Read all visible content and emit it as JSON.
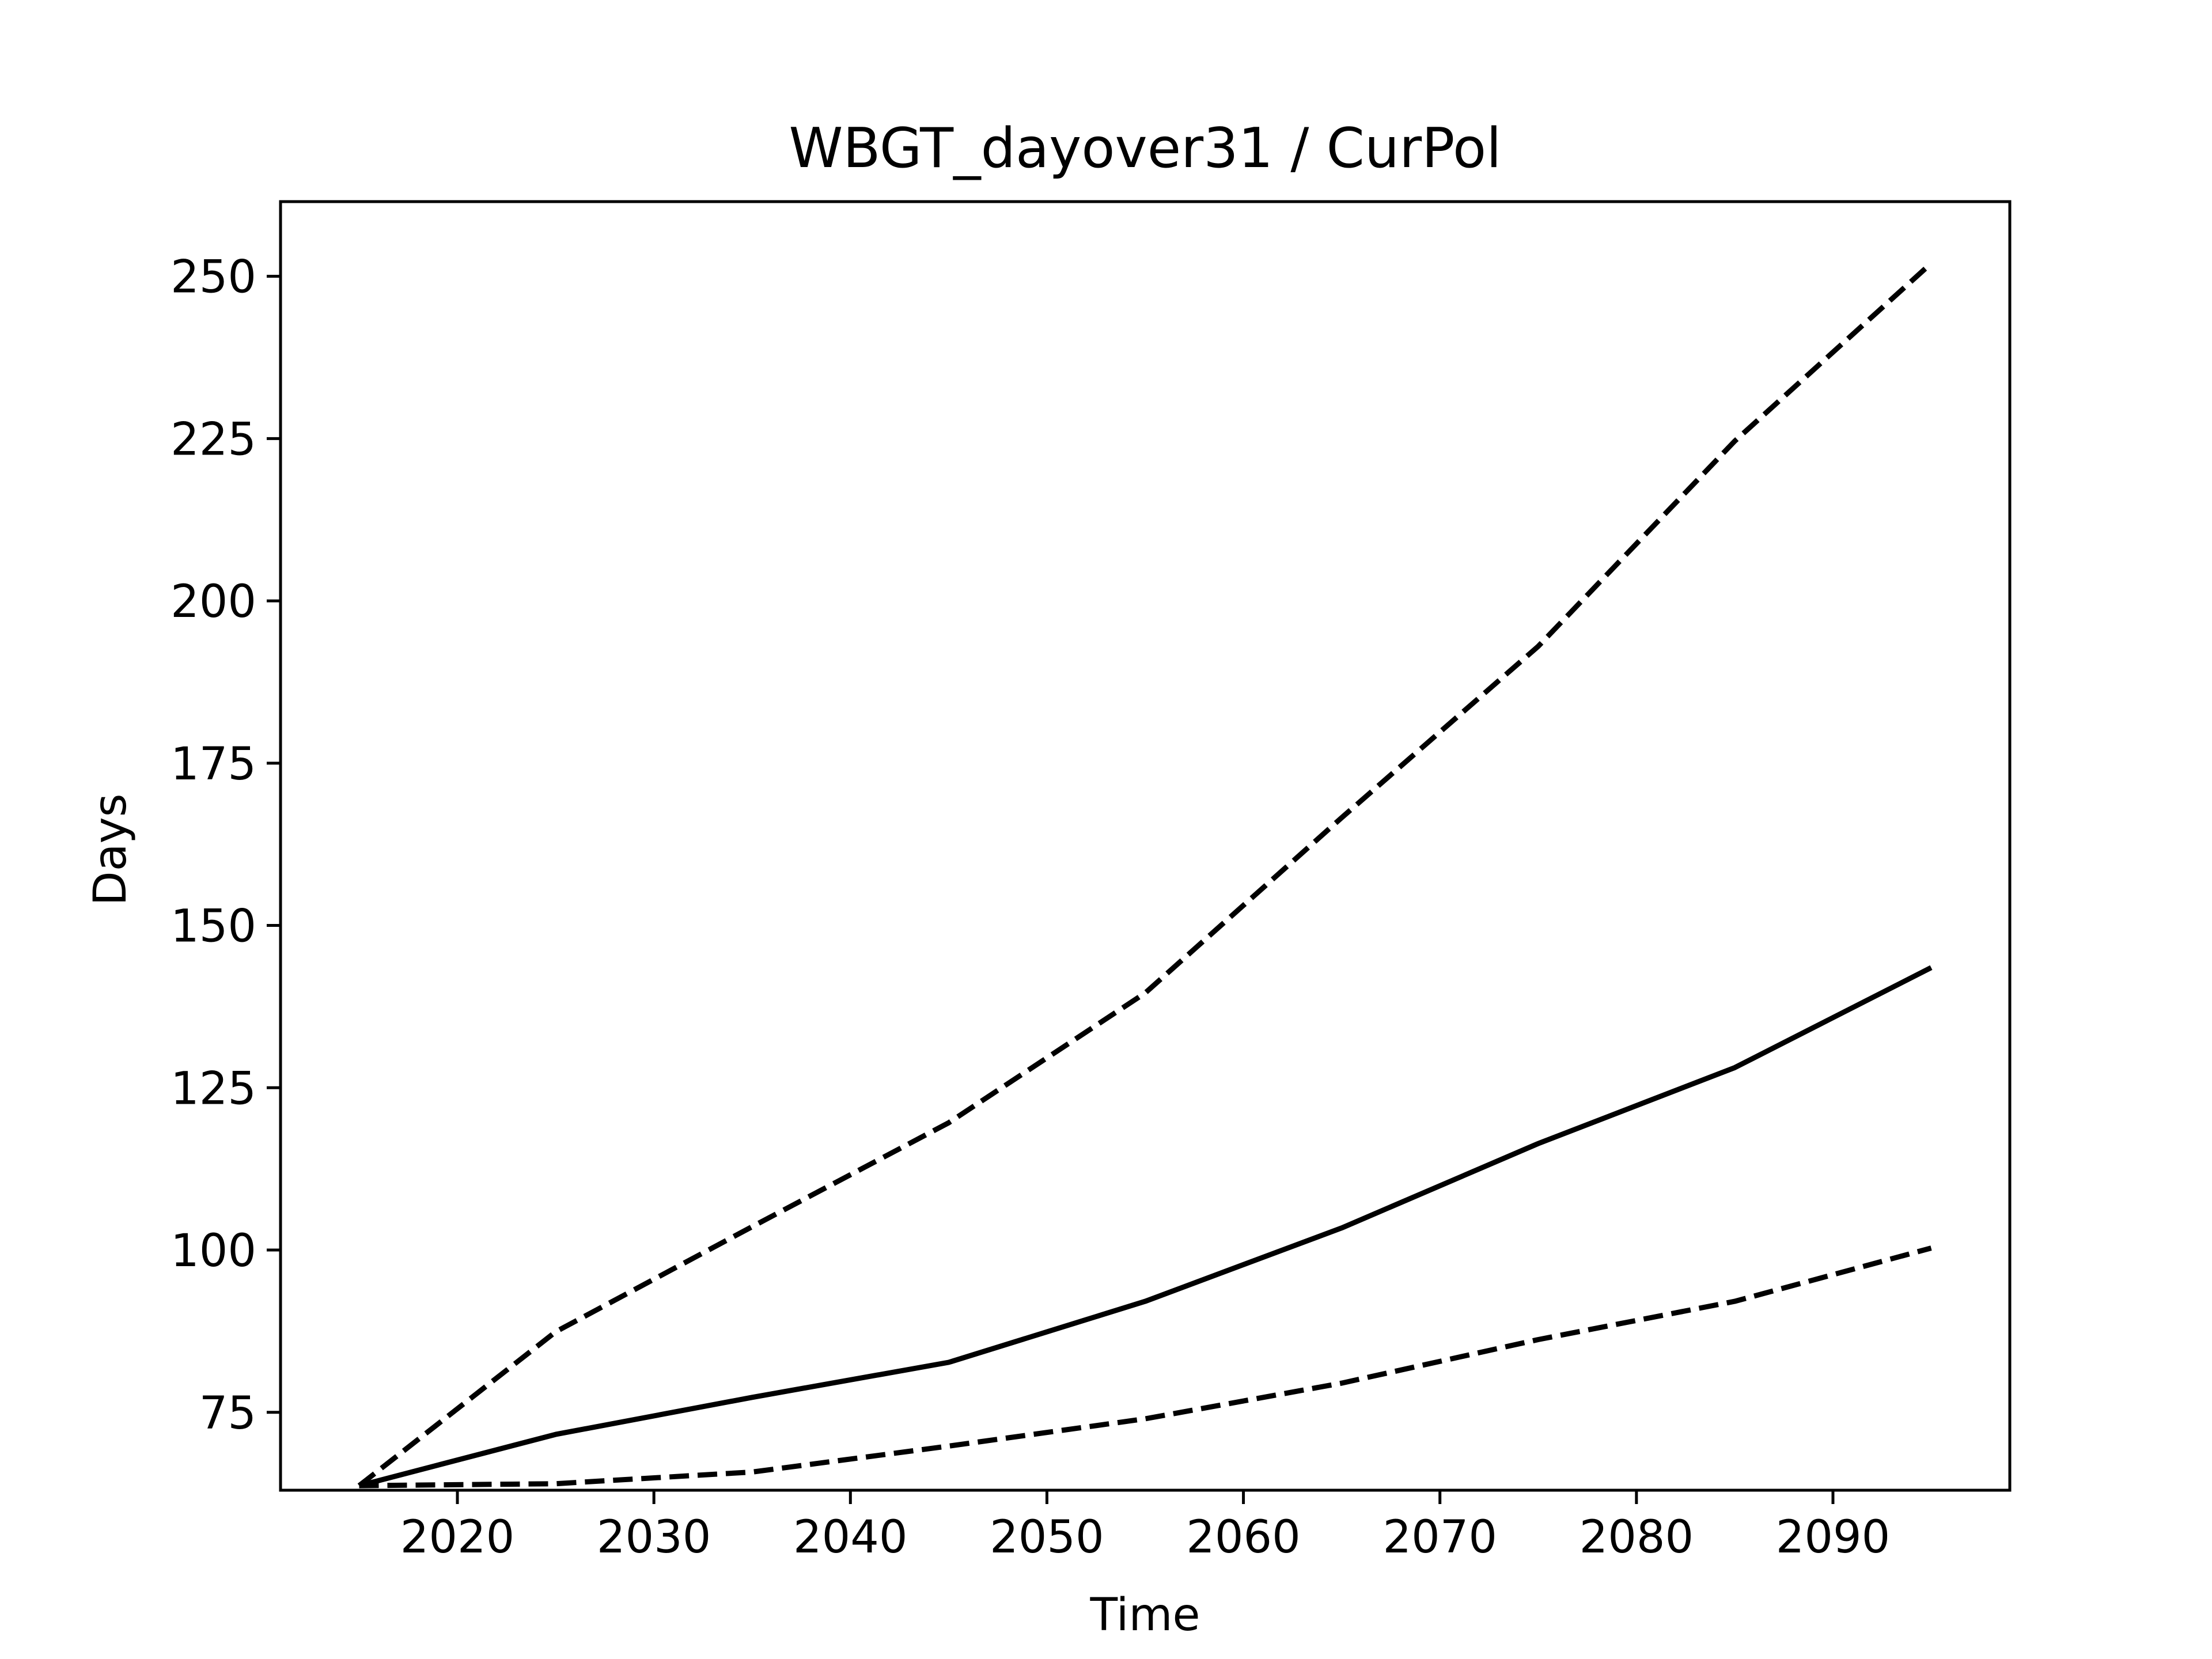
{
  "chart_data": {
    "type": "line",
    "title": "WBGT_dayover31 / CurPol",
    "xlabel": "Time",
    "ylabel": "Days",
    "xlim": [
      2011,
      2099
    ],
    "ylim": [
      63,
      261.5
    ],
    "xticks": [
      2020,
      2030,
      2040,
      2050,
      2060,
      2070,
      2080,
      2090
    ],
    "yticks": [
      75,
      100,
      125,
      150,
      175,
      200,
      225,
      250
    ],
    "grid": false,
    "legend": "none",
    "x": [
      2015,
      2025,
      2035,
      2045,
      2055,
      2065,
      2075,
      2085,
      2095
    ],
    "series": [
      {
        "style": "dashed",
        "values": [
          63.7,
          87.4,
          103.6,
          119.6,
          139.6,
          166.6,
          193.0,
          224.6,
          252.0
        ]
      },
      {
        "style": "solid",
        "values": [
          63.7,
          71.6,
          77.3,
          82.7,
          92.1,
          103.4,
          116.4,
          128.1,
          143.5
        ]
      },
      {
        "style": "dashed",
        "values": [
          63.7,
          64.0,
          65.8,
          69.8,
          74.0,
          79.5,
          86.2,
          92.1,
          100.3
        ]
      }
    ],
    "colors": {
      "line": "#000000",
      "axes": "#000000"
    }
  }
}
